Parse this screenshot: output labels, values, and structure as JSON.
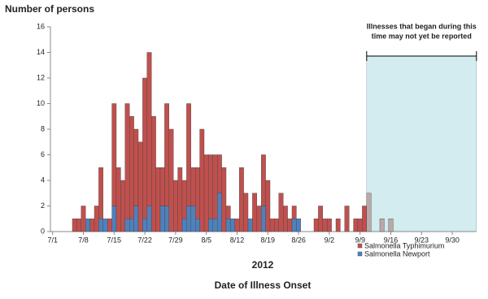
{
  "chart_data": {
    "type": "stacked_bar",
    "y_label": "Number of persons",
    "x_label": "2012",
    "title": "Date of Illness Onset",
    "categories": [
      "7/1",
      null,
      null,
      null,
      null,
      null,
      null,
      "7/8",
      null,
      null,
      null,
      null,
      null,
      null,
      "7/15",
      null,
      null,
      null,
      null,
      null,
      null,
      "7/22",
      null,
      null,
      null,
      null,
      null,
      null,
      "7/29",
      null,
      null,
      null,
      null,
      null,
      null,
      "8/5",
      null,
      null,
      null,
      null,
      null,
      null,
      "8/12",
      null,
      null,
      null,
      null,
      null,
      null,
      "8/19",
      null,
      null,
      null,
      null,
      null,
      null,
      "8/26",
      null,
      null,
      null,
      null,
      null,
      null,
      "9/2",
      null,
      null,
      null,
      null,
      null,
      null,
      "9/9",
      null,
      null,
      null,
      null,
      null,
      null,
      "9/16",
      null,
      null,
      null,
      null,
      null,
      null,
      "9/23",
      null,
      null,
      null,
      null,
      null,
      null,
      "9/30",
      null,
      null,
      null,
      null,
      null
    ],
    "series": [
      {
        "name": "Salmonella Newport",
        "color": "#4f81bd",
        "values": [
          0,
          0,
          0,
          0,
          0,
          0,
          0,
          0,
          1,
          0,
          0,
          1,
          1,
          0,
          2,
          0,
          0,
          1,
          1,
          2,
          0,
          1,
          2,
          0,
          0,
          2,
          2,
          0,
          0,
          0,
          1,
          2,
          2,
          1,
          0,
          0,
          1,
          1,
          3,
          0,
          1,
          1,
          0,
          0,
          0,
          1,
          0,
          0,
          2,
          0,
          0,
          0,
          0,
          0,
          0,
          1,
          1,
          0,
          0,
          0,
          0,
          0,
          0,
          0,
          0,
          0,
          0,
          0,
          0,
          0,
          0,
          0,
          0,
          0,
          0,
          0,
          0,
          0,
          0,
          0,
          0,
          0,
          0,
          0,
          0,
          0,
          0,
          0,
          0,
          0,
          0,
          0,
          0,
          0,
          0,
          0,
          0
        ]
      },
      {
        "name": "Salmonella Typhimurium",
        "color": "#c0504d",
        "values": [
          0,
          0,
          0,
          0,
          0,
          1,
          1,
          2,
          0,
          1,
          2,
          4,
          0,
          1,
          8,
          5,
          4,
          9,
          8,
          6,
          7,
          11,
          12,
          9,
          5,
          3,
          8,
          8,
          4,
          5,
          3,
          8,
          3,
          4,
          8,
          6,
          5,
          5,
          3,
          5,
          1,
          0,
          1,
          5,
          3,
          0,
          3,
          2,
          4,
          4,
          1,
          1,
          3,
          2,
          1,
          1,
          0,
          0,
          0,
          0,
          1,
          2,
          1,
          1,
          0,
          1,
          0,
          2,
          0,
          1,
          1,
          2,
          0,
          0,
          0,
          0,
          0,
          0,
          0,
          0,
          0,
          0,
          0,
          0,
          0,
          0,
          0,
          0,
          0,
          0,
          0,
          0,
          0,
          0,
          0,
          0,
          0
        ]
      },
      {
        "color": "#b9a9a9",
        "values": [
          0,
          0,
          0,
          0,
          0,
          0,
          0,
          0,
          0,
          0,
          0,
          0,
          0,
          0,
          0,
          0,
          0,
          0,
          0,
          0,
          0,
          0,
          0,
          0,
          0,
          0,
          0,
          0,
          0,
          0,
          0,
          0,
          0,
          0,
          0,
          0,
          0,
          0,
          0,
          0,
          0,
          0,
          0,
          0,
          0,
          0,
          0,
          0,
          0,
          0,
          0,
          0,
          0,
          0,
          0,
          0,
          0,
          0,
          0,
          0,
          0,
          0,
          0,
          0,
          0,
          0,
          0,
          0,
          0,
          0,
          0,
          0,
          3,
          0,
          0,
          1,
          0,
          1,
          0,
          0,
          0,
          0,
          0,
          0,
          0,
          0,
          0,
          0,
          0,
          0,
          0,
          0,
          0,
          0,
          0,
          0,
          0
        ]
      }
    ],
    "ylim": [
      0,
      16
    ],
    "yticks": [
      0,
      2,
      4,
      6,
      8,
      10,
      12,
      14,
      16
    ],
    "shade": {
      "start": 72,
      "end": 96,
      "color": "#d2ecef",
      "annotation": [
        "Illnesses that began during this",
        "time may not yet be reported"
      ]
    }
  }
}
